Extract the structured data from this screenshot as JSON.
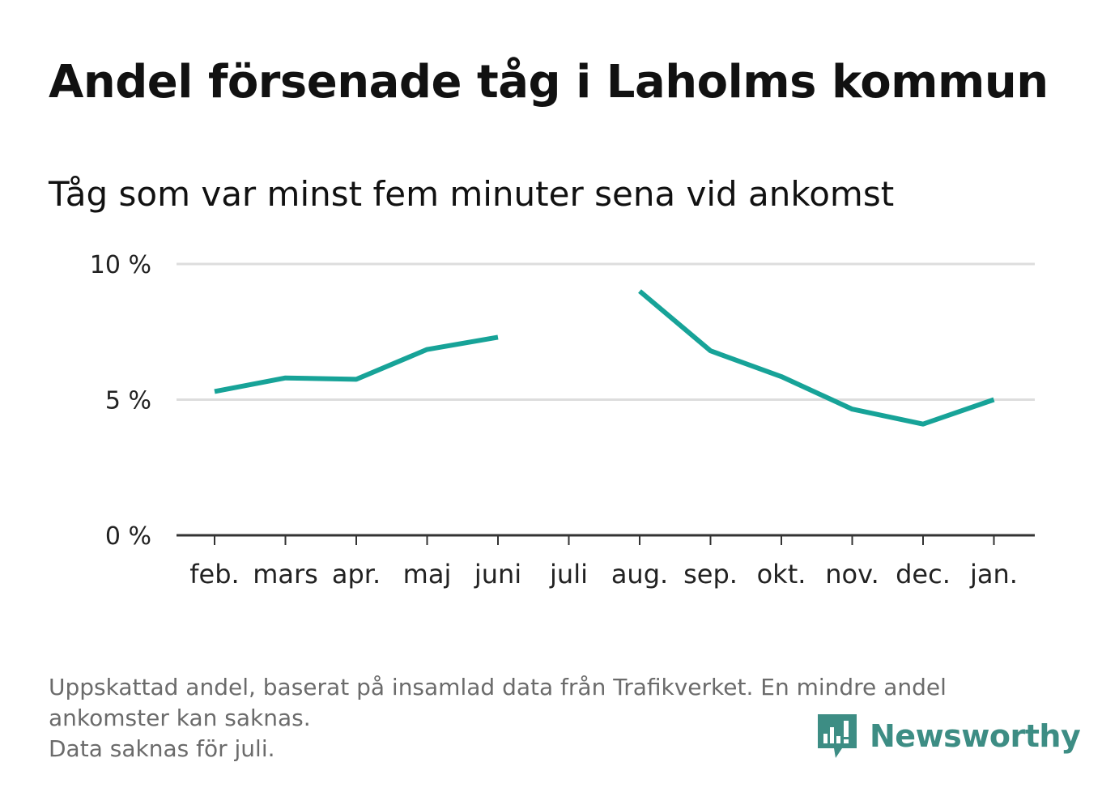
{
  "title": "Andel försenade tåg i Laholms kommun",
  "subtitle": "Tåg som var minst fem minuter sena vid ankomst",
  "chart_data": {
    "type": "line",
    "categories": [
      "feb.",
      "mars",
      "apr.",
      "maj",
      "juni",
      "juli",
      "aug.",
      "sep.",
      "okt.",
      "nov.",
      "dec.",
      "jan."
    ],
    "series": [
      {
        "values": [
          5.3,
          5.8,
          5.75,
          6.85,
          7.3,
          null,
          9.0,
          6.8,
          5.85,
          4.65,
          4.1,
          5.0
        ]
      }
    ],
    "ylim": [
      0,
      10
    ],
    "yticks": [
      0,
      5,
      10
    ],
    "ytick_labels": [
      "0 %",
      "5 %",
      "10 %"
    ],
    "grid": true,
    "color": "#17a398"
  },
  "footnote": {
    "line1": "Uppskattad andel, baserat på insamlad data från Trafikverket. En mindre andel",
    "line2": "ankomster kan saknas.",
    "line3": "Data saknas för juli."
  },
  "brand": {
    "name": "Newsworthy",
    "icon": "newsworthy-logo-icon",
    "color": "#3d8d84"
  }
}
